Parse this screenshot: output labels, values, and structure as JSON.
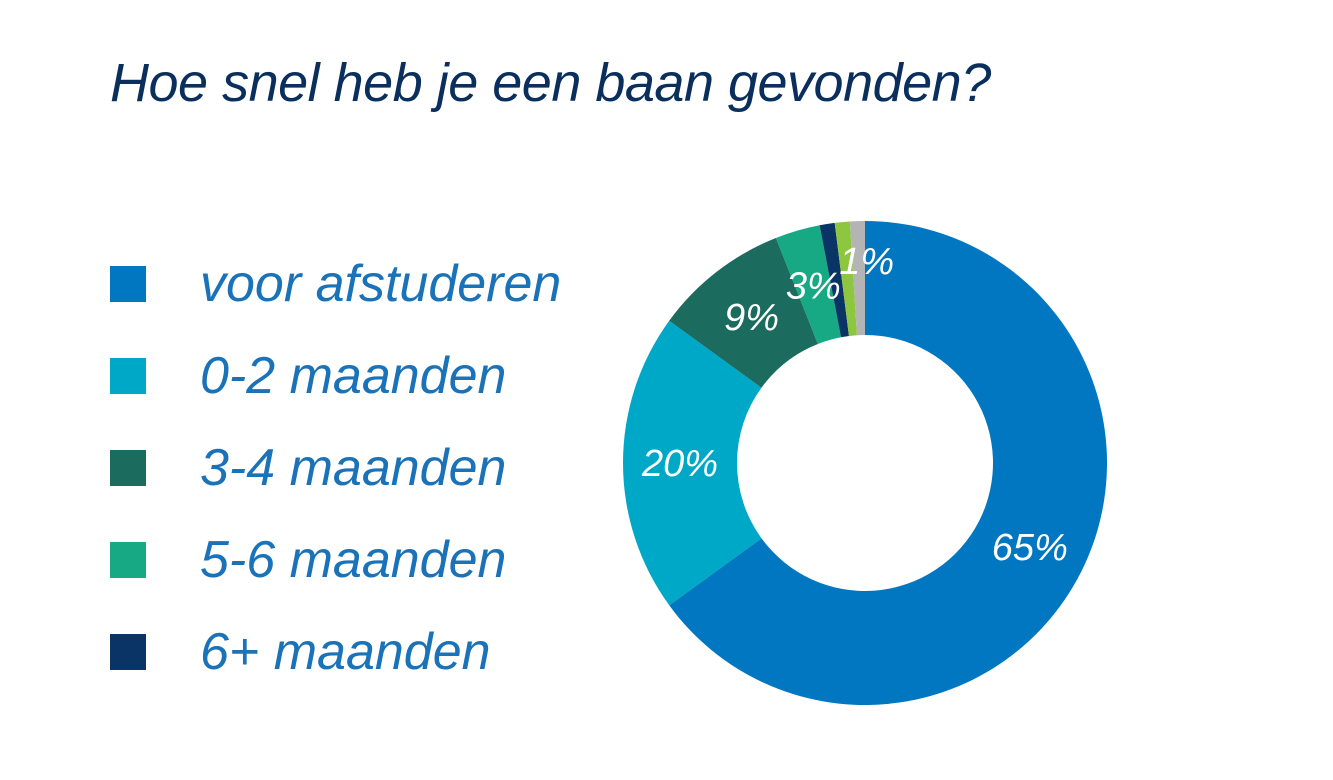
{
  "title": "Hoe snel heb je een baan gevonden?",
  "chart_data": {
    "type": "pie",
    "variant": "donut",
    "title": "Hoe snel heb je een baan gevonden?",
    "categories": [
      "voor afstuderen",
      "0-2 maanden",
      "3-4 maanden",
      "5-6 maanden",
      "6+ maanden",
      "",
      ""
    ],
    "values": [
      65,
      20,
      9,
      3,
      1,
      1,
      1
    ],
    "colors": [
      "#0077c0",
      "#00a8c8",
      "#1b6b5e",
      "#17a884",
      "#0a3366",
      "#8dc63f",
      "#b4b4b4"
    ],
    "data_labels": [
      "65%",
      "20%",
      "9%",
      "3%",
      "",
      "",
      "1%"
    ],
    "legend": [
      {
        "label": "voor afstuderen",
        "color": "#0077c0"
      },
      {
        "label": "0-2 maanden",
        "color": "#00a8c8"
      },
      {
        "label": "3-4 maanden",
        "color": "#1b6b5e"
      },
      {
        "label": "5-6 maanden",
        "color": "#17a884"
      },
      {
        "label": "6+ maanden",
        "color": "#0a3366"
      }
    ],
    "legend_position": "left"
  }
}
